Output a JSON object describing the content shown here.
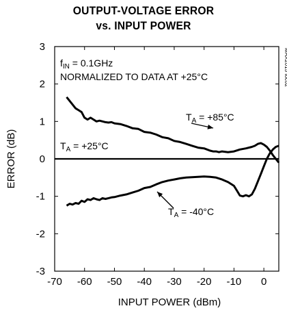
{
  "chart_data": {
    "type": "line",
    "title": "OUTPUT-VOLTAGE ERROR",
    "subtitle": "vs. INPUT POWER",
    "xlabel": "INPUT POWER (dBm)",
    "ylabel": "ERROR (dB)",
    "xlim": [
      -70,
      5
    ],
    "ylim": [
      -3,
      3
    ],
    "x_ticks": [
      "-70",
      "-60",
      "-50",
      "-40",
      "-30",
      "-20",
      "-10",
      "0"
    ],
    "y_ticks": [
      "3",
      "2",
      "1",
      "0",
      "-1",
      "-2",
      "-3"
    ],
    "grid": false,
    "annotations": {
      "condition_prefix": "f",
      "condition_sub": "IN",
      "condition_suffix": " = 0.1GHz",
      "normalized_note": "NORMALIZED TO DATA AT +25°C",
      "ta_prefix": "T",
      "ta_sub": "A",
      "hot_suffix": " = +85°C",
      "room_suffix": " = +25°C",
      "cold_suffix": " = -40°C",
      "part_code": "MAX2015 toc02"
    },
    "series": [
      {
        "name": "TA = +85°C",
        "x": [
          -66,
          -65,
          -64,
          -63,
          -62,
          -61,
          -60,
          -59,
          -58,
          -57,
          -56,
          -55,
          -54,
          -53,
          -52,
          -51,
          -50,
          -48,
          -46,
          -44,
          -42,
          -40,
          -38,
          -36,
          -34,
          -32,
          -30,
          -28,
          -26,
          -24,
          -22,
          -20,
          -18,
          -17,
          -16,
          -15,
          -14,
          -12,
          -10,
          -8,
          -6,
          -4,
          -3,
          -2,
          -1,
          0,
          1,
          2,
          3,
          4,
          5
        ],
        "y": [
          1.65,
          1.55,
          1.45,
          1.35,
          1.3,
          1.25,
          1.1,
          1.05,
          1.1,
          1.05,
          1.0,
          1.02,
          1.0,
          0.98,
          0.97,
          0.98,
          0.95,
          0.93,
          0.88,
          0.82,
          0.8,
          0.72,
          0.7,
          0.65,
          0.58,
          0.55,
          0.48,
          0.45,
          0.4,
          0.35,
          0.3,
          0.28,
          0.22,
          0.2,
          0.2,
          0.18,
          0.2,
          0.18,
          0.2,
          0.25,
          0.28,
          0.32,
          0.35,
          0.4,
          0.42,
          0.38,
          0.32,
          0.22,
          0.1,
          0.0,
          -0.1
        ]
      },
      {
        "name": "TA = +25°C",
        "x": [
          -70,
          5
        ],
        "y": [
          0,
          0
        ]
      },
      {
        "name": "TA = -40°C",
        "x": [
          -66,
          -65,
          -64,
          -63,
          -62,
          -61,
          -60,
          -59,
          -58,
          -57,
          -56,
          -55,
          -54,
          -53,
          -52,
          -51,
          -50,
          -48,
          -46,
          -44,
          -42,
          -40,
          -38,
          -36,
          -34,
          -32,
          -30,
          -28,
          -26,
          -24,
          -22,
          -20,
          -18,
          -16,
          -14,
          -12,
          -10,
          -9,
          -8,
          -7,
          -6,
          -5,
          -4,
          -3,
          -2,
          -1,
          0,
          1,
          2,
          3,
          4,
          5
        ],
        "y": [
          -1.25,
          -1.2,
          -1.22,
          -1.18,
          -1.2,
          -1.12,
          -1.15,
          -1.08,
          -1.1,
          -1.05,
          -1.08,
          -1.1,
          -1.05,
          -1.07,
          -1.05,
          -1.03,
          -1.02,
          -0.98,
          -0.95,
          -0.9,
          -0.85,
          -0.78,
          -0.75,
          -0.68,
          -0.62,
          -0.58,
          -0.55,
          -0.52,
          -0.5,
          -0.49,
          -0.48,
          -0.47,
          -0.48,
          -0.5,
          -0.55,
          -0.62,
          -0.72,
          -0.85,
          -0.98,
          -1.0,
          -0.97,
          -1.0,
          -0.95,
          -0.8,
          -0.6,
          -0.4,
          -0.2,
          0.0,
          0.15,
          0.25,
          0.32,
          0.35
        ]
      }
    ],
    "legend": "inline-labels"
  }
}
